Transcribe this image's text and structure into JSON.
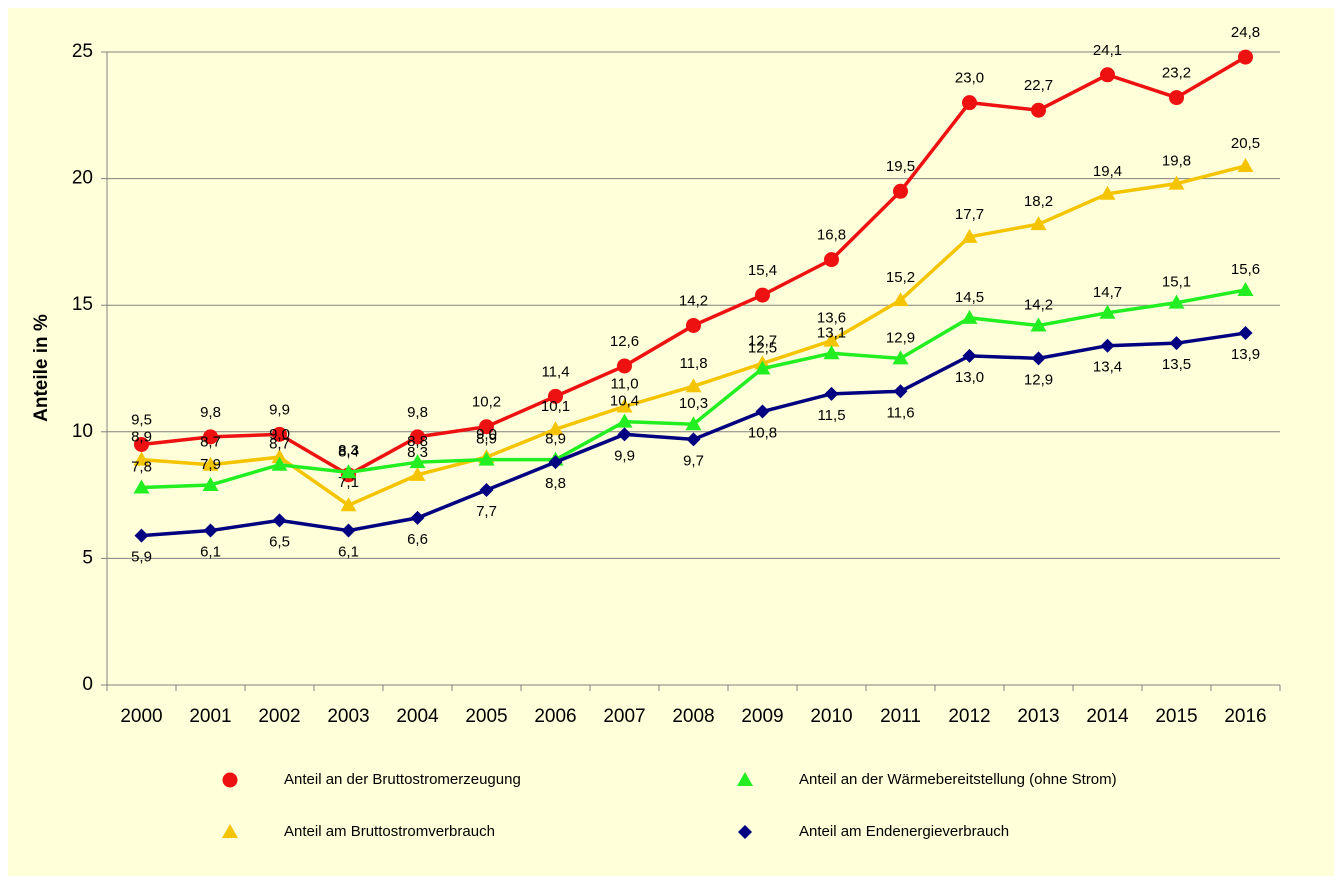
{
  "chart_data": {
    "type": "line",
    "ylabel": "Anteile in %",
    "categories": [
      "2000",
      "2001",
      "2002",
      "2003",
      "2004",
      "2005",
      "2006",
      "2007",
      "2008",
      "2009",
      "2010",
      "2011",
      "2012",
      "2013",
      "2014",
      "2015",
      "2016"
    ],
    "ylim": [
      0,
      25
    ],
    "yticks": [
      0,
      5,
      10,
      15,
      20,
      25
    ],
    "grid": true,
    "legend": "bottom",
    "series": [
      {
        "name": "Anteil an der Bruttostromerzeugung",
        "color": "#ee1111",
        "marker": "circle",
        "values": [
          9.5,
          9.8,
          9.9,
          8.3,
          9.8,
          10.2,
          11.4,
          12.6,
          14.2,
          15.4,
          16.8,
          19.5,
          23.0,
          22.7,
          24.1,
          23.2,
          24.8
        ],
        "value_labels": [
          "9,5",
          "9,8",
          "9,9",
          "8,3",
          "9,8",
          "10,2",
          "11,4",
          "12,6",
          "14,2",
          "15,4",
          "16,8",
          "19,5",
          "23,0",
          "22,7",
          "24,1",
          "23,2",
          "24,8"
        ]
      },
      {
        "name": "Anteil am Bruttostromverbrauch",
        "color": "#f5c400",
        "marker": "triangle",
        "values": [
          8.9,
          8.7,
          9.0,
          7.1,
          8.3,
          9.0,
          10.1,
          11.0,
          11.8,
          12.7,
          13.6,
          15.2,
          17.7,
          18.2,
          19.4,
          19.8,
          20.5
        ],
        "value_labels": [
          "8,9",
          "8,7",
          "9,0",
          "7,1",
          "8,3",
          "9,0",
          "10,1",
          "11,0",
          "11,8",
          "12,7",
          "13,6",
          "15,2",
          "17,7",
          "18,2",
          "19,4",
          "19,8",
          "20,5"
        ]
      },
      {
        "name": "Anteil an der Wärmebereitstellung (ohne Strom)",
        "color": "#22ee22",
        "marker": "triangle",
        "values": [
          7.8,
          7.9,
          8.7,
          8.4,
          8.8,
          8.9,
          8.9,
          10.4,
          10.3,
          12.5,
          13.1,
          12.9,
          14.5,
          14.2,
          14.7,
          15.1,
          15.6
        ],
        "value_labels": [
          "7,8",
          "7,9",
          "8,7",
          "8,4",
          "8,8",
          "8,9",
          "8,9",
          "10,4",
          "10,3",
          "12,5",
          "13,1",
          "12,9",
          "14,5",
          "14,2",
          "14,7",
          "15,1",
          "15,6"
        ]
      },
      {
        "name": "Anteil am Endenergieverbrauch",
        "color": "#000080",
        "marker": "diamond",
        "values": [
          5.9,
          6.1,
          6.5,
          6.1,
          6.6,
          7.7,
          8.8,
          9.9,
          9.7,
          10.8,
          11.5,
          11.6,
          13.0,
          12.9,
          13.4,
          13.5,
          13.9
        ],
        "value_labels": [
          "5,9",
          "6,1",
          "6,5",
          "6,1",
          "6,6",
          "7,7",
          "8,8",
          "9,9",
          "9,7",
          "10,8",
          "11,5",
          "11,6",
          "13,0",
          "12,9",
          "13,4",
          "13,5",
          "13,9"
        ]
      }
    ]
  }
}
